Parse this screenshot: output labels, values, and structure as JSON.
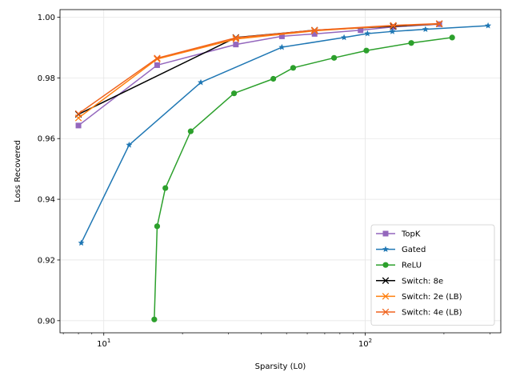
{
  "chart_data": {
    "type": "line",
    "xscale": "log",
    "xlim": [
      6.8,
      330
    ],
    "ylim": [
      0.896,
      1.0025
    ],
    "xlabel": "Sparsity (L0)",
    "ylabel": "Loss Recovered",
    "grid": true,
    "legend_position": "bottom-right",
    "xticks": [
      {
        "value": 10,
        "base": "10",
        "exp": "1"
      },
      {
        "value": 100,
        "base": "10",
        "exp": "2"
      }
    ],
    "yticks": [
      {
        "value": 0.9,
        "label": "0.90"
      },
      {
        "value": 0.92,
        "label": "0.92"
      },
      {
        "value": 0.94,
        "label": "0.94"
      },
      {
        "value": 0.96,
        "label": "0.96"
      },
      {
        "value": 0.98,
        "label": "0.98"
      },
      {
        "value": 1.0,
        "label": "1.00"
      }
    ],
    "series": [
      {
        "name": "TopK",
        "color": "#9467bd",
        "marker": "square",
        "points": [
          [
            8,
            0.9643
          ],
          [
            16,
            0.9842
          ],
          [
            32,
            0.991
          ],
          [
            48,
            0.9937
          ],
          [
            64,
            0.9945
          ],
          [
            96,
            0.9957
          ],
          [
            128,
            0.9968
          ],
          [
            192,
            0.9977
          ]
        ]
      },
      {
        "name": "Gated",
        "color": "#1f77b4",
        "marker": "star",
        "points": [
          [
            8.2,
            0.9256
          ],
          [
            12.5,
            0.9579
          ],
          [
            23.5,
            0.9785
          ],
          [
            48,
            0.9901
          ],
          [
            83,
            0.9933
          ],
          [
            102,
            0.9946
          ],
          [
            127,
            0.9953
          ],
          [
            170,
            0.996
          ],
          [
            295,
            0.9972
          ]
        ]
      },
      {
        "name": "ReLU",
        "color": "#2ca02c",
        "marker": "circle",
        "points": [
          [
            15.6,
            0.9004
          ],
          [
            16,
            0.9311
          ],
          [
            17.2,
            0.9437
          ],
          [
            21.5,
            0.9624
          ],
          [
            31.5,
            0.9749
          ],
          [
            44.5,
            0.9797
          ],
          [
            53,
            0.9833
          ],
          [
            76,
            0.9866
          ],
          [
            101,
            0.989
          ],
          [
            150,
            0.9915
          ],
          [
            215,
            0.9933
          ]
        ]
      },
      {
        "name": "Switch: 8e",
        "color": "#000000",
        "marker": "x",
        "points": [
          [
            8,
            0.968
          ],
          [
            32,
            0.9933
          ],
          [
            64,
            0.9957
          ],
          [
            128,
            0.997
          ],
          [
            192,
            0.9978
          ]
        ]
      },
      {
        "name": "Switch: 2e (LB)",
        "color": "#ff7f0e",
        "marker": "x",
        "points": [
          [
            8,
            0.9668
          ],
          [
            16,
            0.9862
          ],
          [
            32,
            0.9928
          ],
          [
            64,
            0.9955
          ],
          [
            128,
            0.9972
          ],
          [
            192,
            0.9978
          ]
        ]
      },
      {
        "name": "Switch: 4e (LB)",
        "color": "#f0641e",
        "marker": "x",
        "points": [
          [
            8,
            0.9682
          ],
          [
            16,
            0.9865
          ],
          [
            32,
            0.9932
          ],
          [
            64,
            0.9957
          ],
          [
            128,
            0.9973
          ],
          [
            192,
            0.9979
          ]
        ]
      }
    ]
  }
}
